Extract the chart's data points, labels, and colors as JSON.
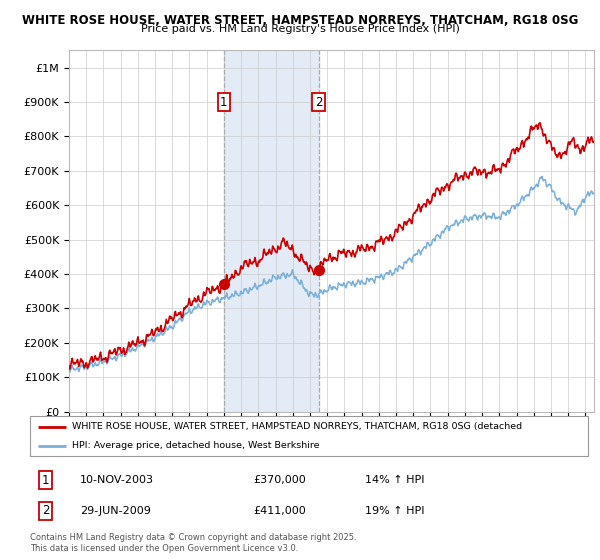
{
  "title": "WHITE ROSE HOUSE, WATER STREET, HAMPSTEAD NORREYS, THATCHAM, RG18 0SG",
  "subtitle": "Price paid vs. HM Land Registry's House Price Index (HPI)",
  "legend_line1": "WHITE ROSE HOUSE, WATER STREET, HAMPSTEAD NORREYS, THATCHAM, RG18 0SG (detached",
  "legend_line2": "HPI: Average price, detached house, West Berkshire",
  "transaction1_date": "10-NOV-2003",
  "transaction1_price": "£370,000",
  "transaction1_hpi": "14% ↑ HPI",
  "transaction2_date": "29-JUN-2009",
  "transaction2_price": "£411,000",
  "transaction2_hpi": "19% ↑ HPI",
  "footer": "Contains HM Land Registry data © Crown copyright and database right 2025.\nThis data is licensed under the Open Government Licence v3.0.",
  "red_color": "#cc0000",
  "blue_color": "#7aafda",
  "vline_color": "#aaaacc",
  "shaded_color": "#dde8f5",
  "grid_color": "#cccccc",
  "ylim": [
    0,
    1050000
  ],
  "ytick_labels": [
    "£0",
    "£100K",
    "£200K",
    "£300K",
    "£400K",
    "£500K",
    "£600K",
    "£700K",
    "£800K",
    "£900K",
    "£1M"
  ],
  "yticks": [
    0,
    100000,
    200000,
    300000,
    400000,
    500000,
    600000,
    700000,
    800000,
    900000,
    1000000
  ],
  "xticks": [
    1995,
    1996,
    1997,
    1998,
    1999,
    2000,
    2001,
    2002,
    2003,
    2004,
    2005,
    2006,
    2007,
    2008,
    2009,
    2010,
    2011,
    2012,
    2013,
    2014,
    2015,
    2016,
    2017,
    2018,
    2019,
    2020,
    2021,
    2022,
    2023,
    2024,
    2025
  ],
  "xlim_start": 1995.0,
  "xlim_end": 2025.5,
  "transaction1_x": 2004.0,
  "transaction2_x": 2009.5,
  "transaction1_y": 370000,
  "transaction2_y": 411000
}
